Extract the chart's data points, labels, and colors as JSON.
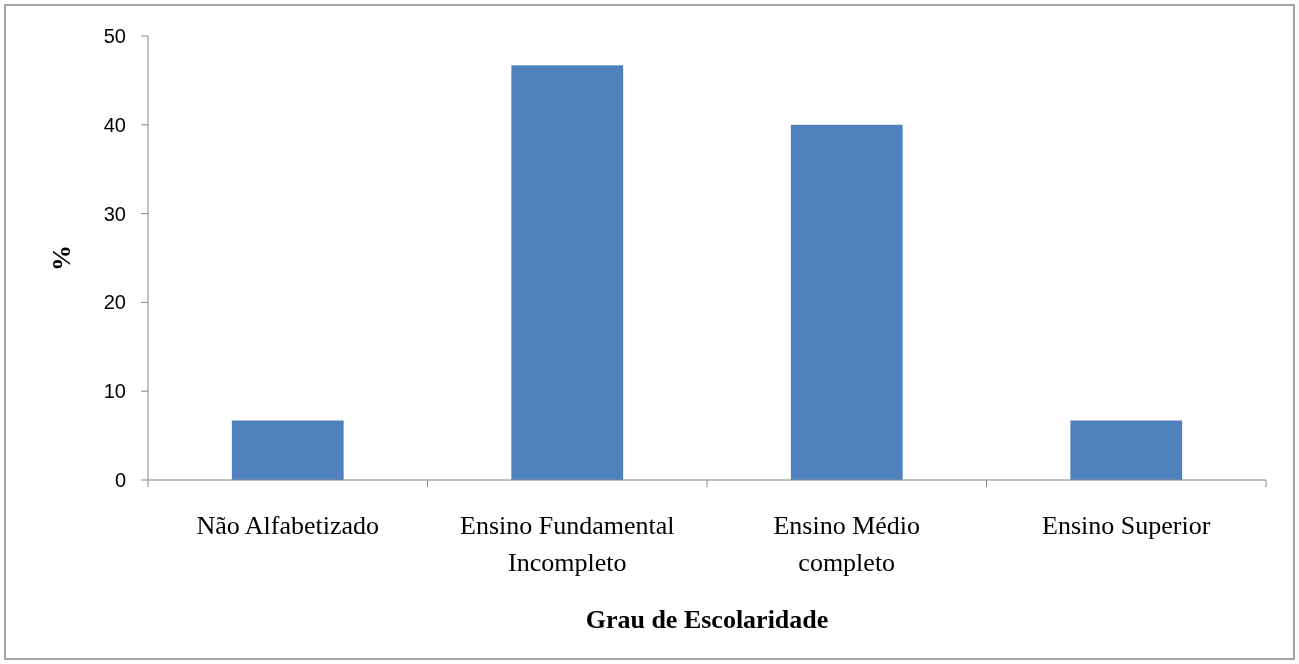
{
  "chart_data": {
    "type": "bar",
    "xlabel": "Grau de Escolaridade",
    "ylabel": "%",
    "categories": [
      "Não Alfabetizado",
      "Ensino Fundamental\nIncompleto",
      "Ensino Médio\ncompleto",
      "Ensino Superior"
    ],
    "values": [
      6.7,
      46.7,
      40,
      6.7
    ],
    "color": "#4f81bd",
    "ylim": [
      0,
      50
    ],
    "yticks": [
      0,
      10,
      20,
      30,
      40,
      50
    ],
    "grid": false
  }
}
